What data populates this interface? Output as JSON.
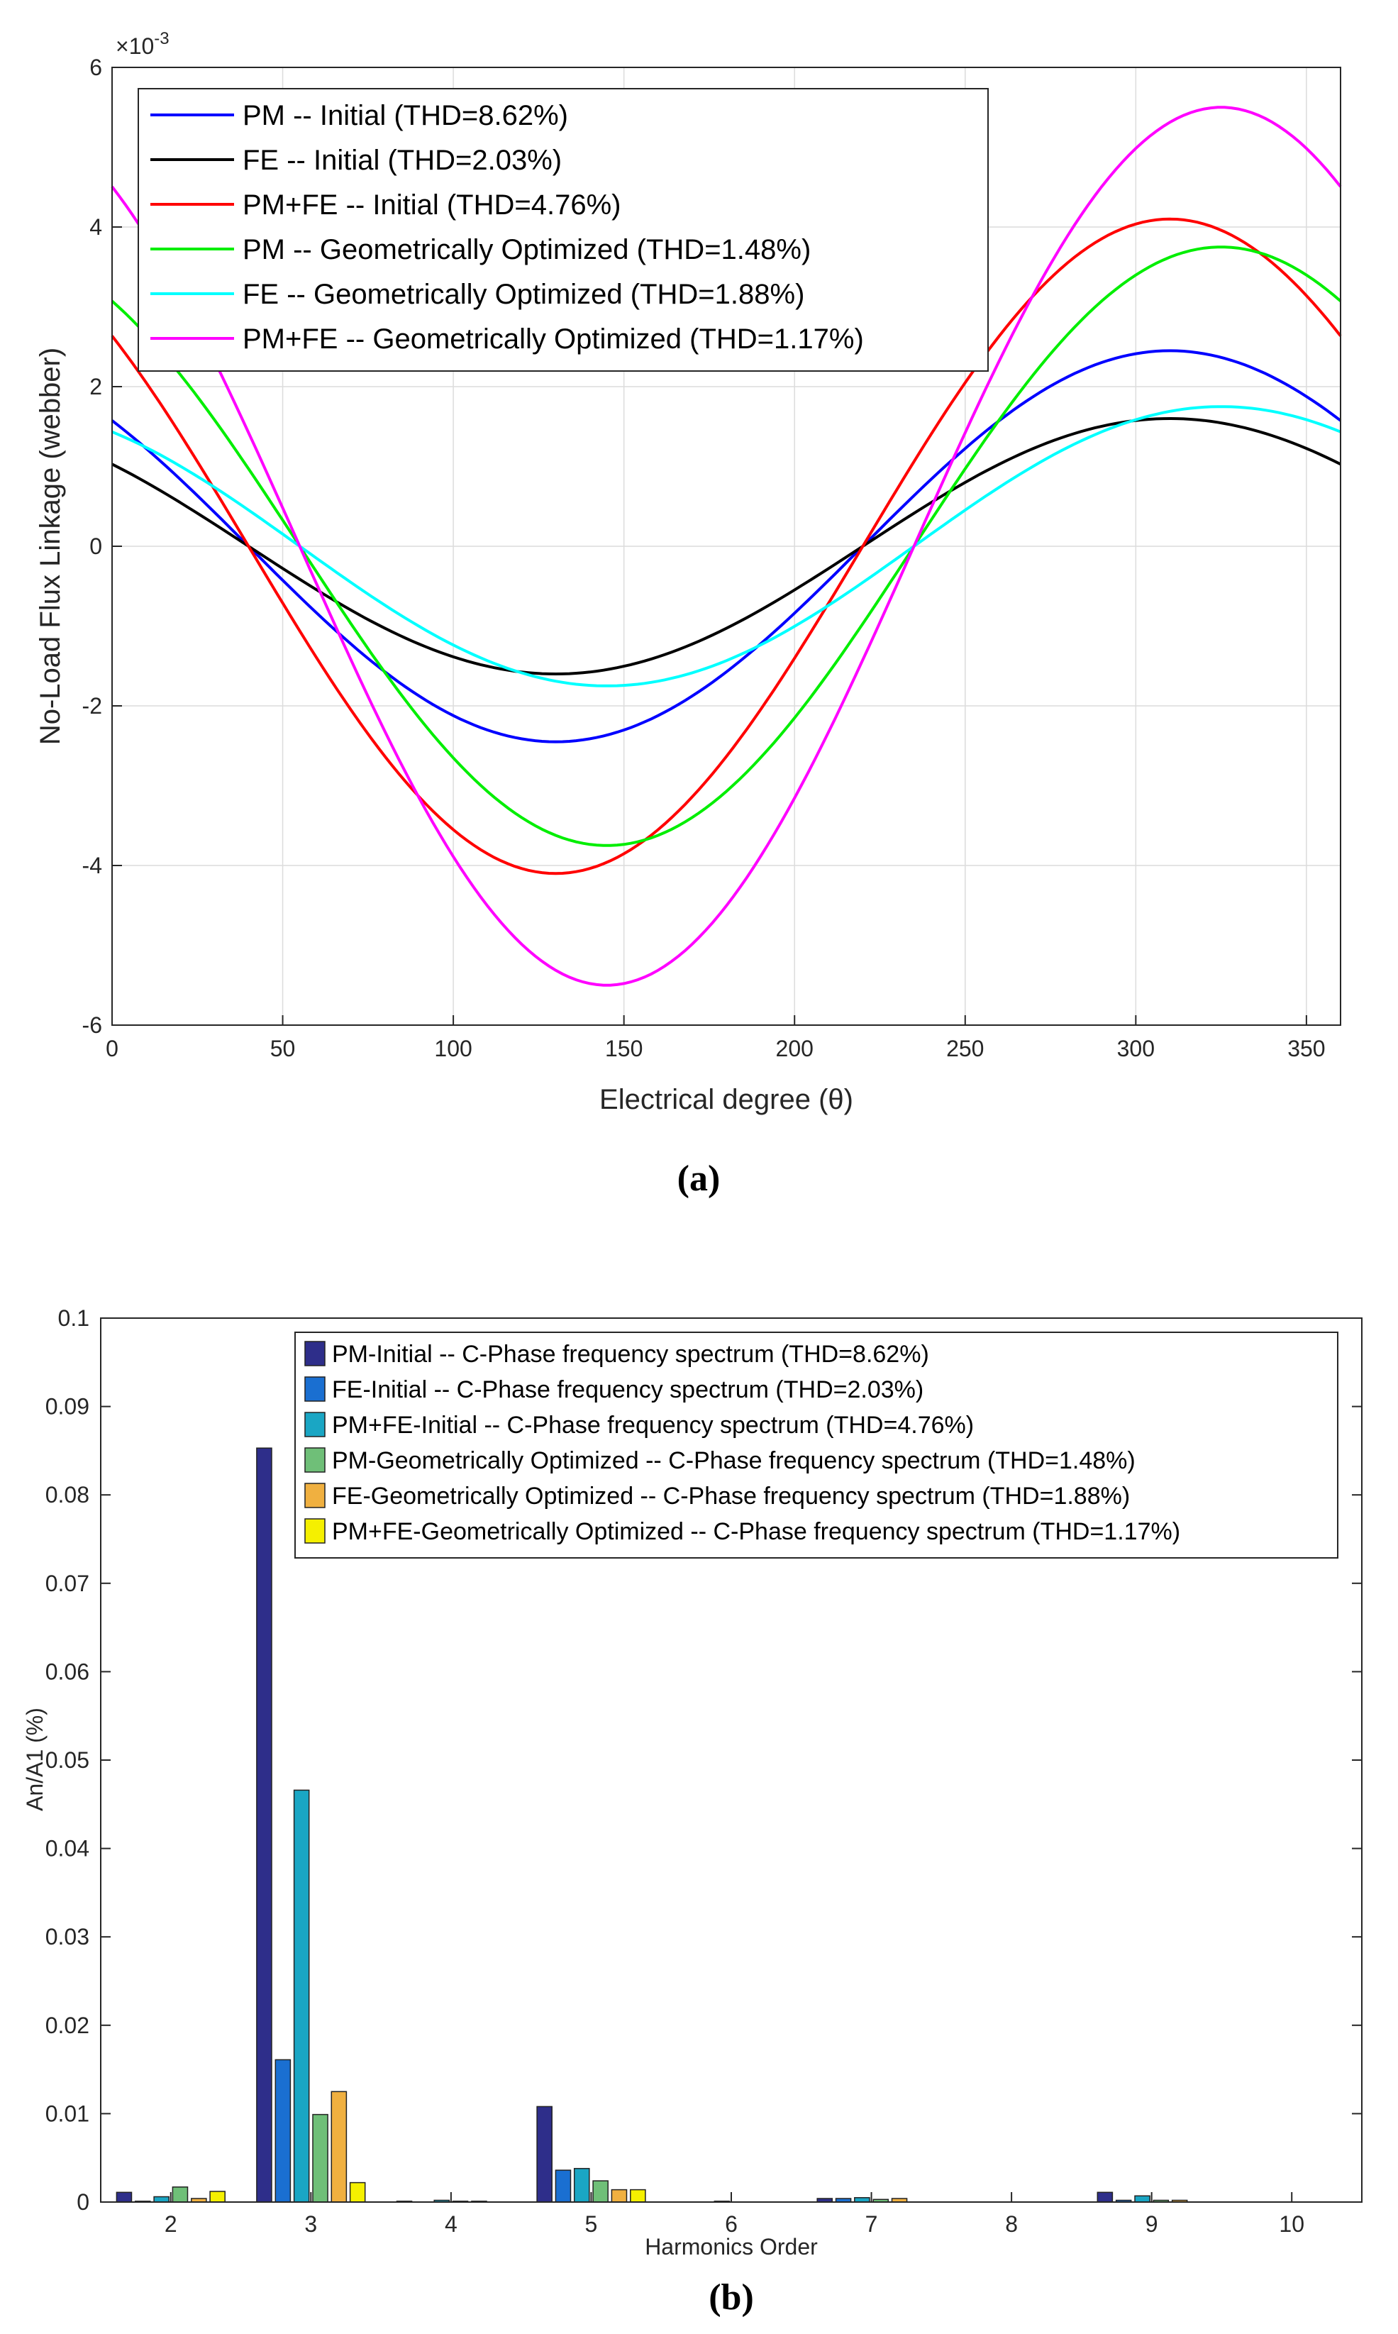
{
  "chart_data": [
    {
      "type": "line",
      "panel_label": "(a)",
      "title": "",
      "xlabel": "Electrical degree (θ)",
      "ylabel": "No-Load Flux Linkage (webber)",
      "y_exponent": "×10",
      "y_exponent_power": "-3",
      "xlim": [
        0,
        360
      ],
      "ylim": [
        -6,
        6
      ],
      "xticks": [
        "0",
        "50",
        "100",
        "150",
        "200",
        "250",
        "300",
        "350"
      ],
      "yticks": [
        "-6",
        "-4",
        "-2",
        "0",
        "2",
        "4",
        "6"
      ],
      "grid": true,
      "legend_position": "top-left",
      "series": [
        {
          "name": "PM -- Initial (THD=8.62%)",
          "color": "#0000ff",
          "amplitude": 2.45,
          "zero_crossing": 40,
          "shift_at_zero": 1.15
        },
        {
          "name": "FE -- Initial (THD=2.03%)",
          "color": "#000000",
          "amplitude": 1.6,
          "zero_crossing": 40,
          "shift_at_zero": 1.0
        },
        {
          "name": "PM+FE -- Initial (THD=4.76%)",
          "color": "#ff0000",
          "amplitude": 4.1,
          "zero_crossing": 40,
          "shift_at_zero": 2.2
        },
        {
          "name": "PM -- Geometrically Optimized (THD=1.48%)",
          "color": "#00ee00",
          "amplitude": 3.75,
          "zero_crossing": 55,
          "shift_at_zero": 2.9
        },
        {
          "name": "FE -- Geometrically Optimized (THD=1.88%)",
          "color": "#00ffff",
          "amplitude": 1.75,
          "zero_crossing": 55,
          "shift_at_zero": 1.35
        },
        {
          "name": "PM+FE -- Geometrically Optimized (THD=1.17%)",
          "color": "#ff00ff",
          "amplitude": 5.5,
          "zero_crossing": 55,
          "shift_at_zero": 4.3
        }
      ]
    },
    {
      "type": "bar",
      "panel_label": "(b)",
      "title": "",
      "xlabel": "Harmonics Order",
      "ylabel": "An/A1 (%)",
      "ylim": [
        0,
        0.1
      ],
      "yticks": [
        "0",
        "0.01",
        "0.02",
        "0.03",
        "0.04",
        "0.05",
        "0.06",
        "0.07",
        "0.08",
        "0.09",
        "0.1"
      ],
      "categories": [
        "2",
        "3",
        "4",
        "5",
        "6",
        "7",
        "8",
        "9",
        "10"
      ],
      "grid": false,
      "legend_position": "top-right",
      "series": [
        {
          "name": "PM-Initial -- C-Phase frequency spectrum (THD=8.62%)",
          "color": "#2e2e8a",
          "values": [
            0.0011,
            0.0853,
            0.0001,
            0.0108,
            0.0,
            0.0004,
            0.0,
            0.0011,
            0.0
          ]
        },
        {
          "name": "FE-Initial -- C-Phase frequency spectrum (THD=2.03%)",
          "color": "#1a6fd1",
          "values": [
            0.0001,
            0.0161,
            0.0,
            0.0036,
            0.0,
            0.0004,
            0.0,
            0.0002,
            0.0
          ]
        },
        {
          "name": "PM+FE-Initial -- C-Phase frequency spectrum (THD=4.76%)",
          "color": "#1aa6c4",
          "values": [
            0.0006,
            0.0466,
            0.0002,
            0.0038,
            0.0001,
            0.0005,
            0.0,
            0.0007,
            0.0
          ]
        },
        {
          "name": "PM-Geometrically Optimized -- C-Phase frequency spectrum (THD=1.48%)",
          "color": "#6fbf78",
          "values": [
            0.0017,
            0.0099,
            0.0001,
            0.0024,
            0.0,
            0.0003,
            0.0,
            0.0002,
            0.0
          ]
        },
        {
          "name": "FE-Geometrically Optimized -- C-Phase frequency spectrum (THD=1.88%)",
          "color": "#f0b040",
          "values": [
            0.0004,
            0.0125,
            0.0001,
            0.0014,
            0.0,
            0.0004,
            0.0,
            0.0002,
            0.0
          ]
        },
        {
          "name": "PM+FE-Geometrically Optimized -- C-Phase frequency spectrum (THD=1.17%)",
          "color": "#f5f000",
          "values": [
            0.0012,
            0.0022,
            0.0,
            0.0014,
            0.0,
            0.0,
            0.0,
            0.0,
            0.0
          ]
        }
      ]
    }
  ]
}
